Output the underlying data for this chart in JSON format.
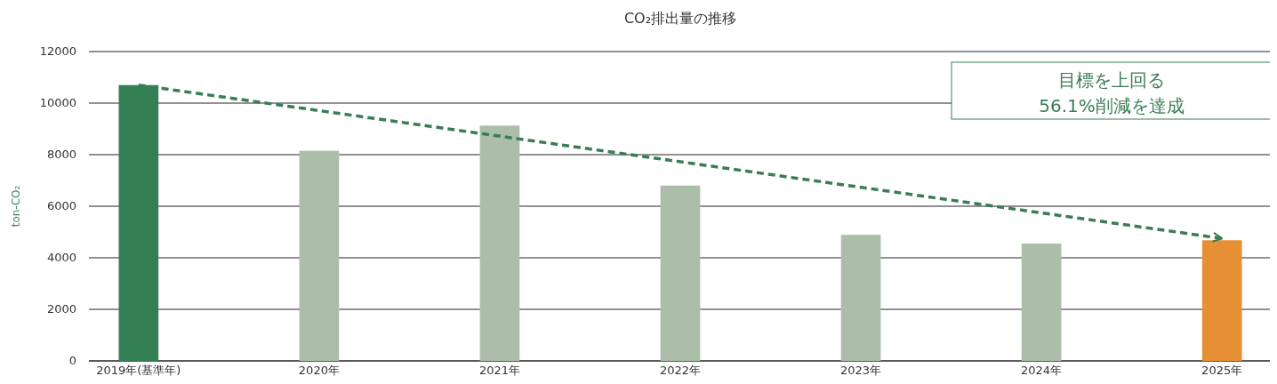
{
  "chart_data": {
    "type": "bar",
    "title": "CO₂排出量の推移",
    "ylabel": "ton-CO₂",
    "categories": [
      "2019年(基準年)",
      "2020年",
      "2021年",
      "2022年",
      "2023年",
      "2024年",
      "2025年"
    ],
    "series": [
      {
        "values": [
          10700,
          8150,
          9130,
          6800,
          4890,
          4550,
          4680
        ],
        "colors": [
          "#357f55",
          "#acbeaa",
          "#acbeaa",
          "#acbeaa",
          "#acbeaa",
          "#acbeaa",
          "#e68f34"
        ]
      },
      {
        "type": "line",
        "x": [
          "2019年(基準年)",
          "2025年"
        ],
        "values": [
          10700,
          4750
        ],
        "color": "#3a7d55",
        "line_style": "dashed",
        "marker": "none"
      }
    ],
    "ylim": [
      0,
      12000
    ],
    "yticks": [
      0,
      2000,
      4000,
      6000,
      8000,
      10000,
      12000
    ],
    "grid": "y",
    "annotations": [
      "目標を上回る\n56.1%削減を達成"
    ]
  }
}
